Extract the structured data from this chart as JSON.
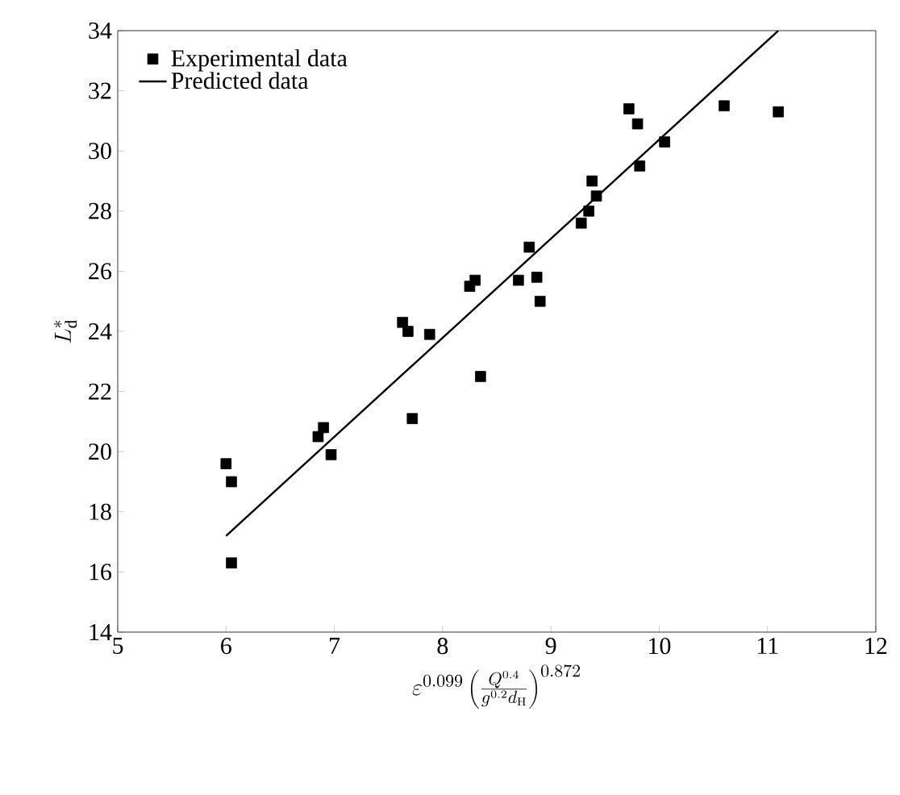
{
  "chart_data": {
    "type": "scatter",
    "xlabel": "\\varepsilon^{0.099}\\left(\\frac{Q^{0.4}}{g^{0.2}d_{\\mathrm{H}}}\\right)^{0.872}",
    "ylabel": "L^{*}_{\\mathrm{d}}",
    "xlim": [
      5,
      12
    ],
    "ylim": [
      14,
      34
    ],
    "xticks": [
      5,
      6,
      7,
      8,
      9,
      10,
      11,
      12
    ],
    "yticks": [
      14,
      16,
      18,
      20,
      22,
      24,
      26,
      28,
      30,
      32,
      34
    ],
    "legend": "top left",
    "grid": false,
    "series": [
      {
        "name": "Experimental data",
        "marker": "square",
        "color": "#000000",
        "x": [
          6.0,
          6.05,
          6.05,
          6.85,
          6.9,
          6.97,
          7.63,
          7.68,
          7.72,
          7.88,
          8.25,
          8.3,
          8.35,
          8.7,
          8.8,
          8.87,
          8.9,
          9.28,
          9.35,
          9.38,
          9.42,
          9.72,
          9.8,
          9.82,
          10.05,
          10.6,
          11.1
        ],
        "values": [
          19.6,
          19.0,
          16.3,
          20.5,
          20.8,
          19.9,
          24.3,
          24.0,
          21.1,
          23.9,
          25.5,
          25.7,
          22.5,
          25.7,
          26.8,
          25.8,
          25.0,
          27.6,
          28.0,
          29.0,
          28.5,
          31.4,
          30.9,
          29.5,
          30.3,
          31.5,
          31.3
        ]
      },
      {
        "name": "Predicted data",
        "type": "line",
        "marker": "none",
        "line_style": "solid",
        "color": "#000000",
        "x": [
          6.0,
          11.1
        ],
        "values": [
          17.2,
          34.0
        ]
      }
    ]
  }
}
